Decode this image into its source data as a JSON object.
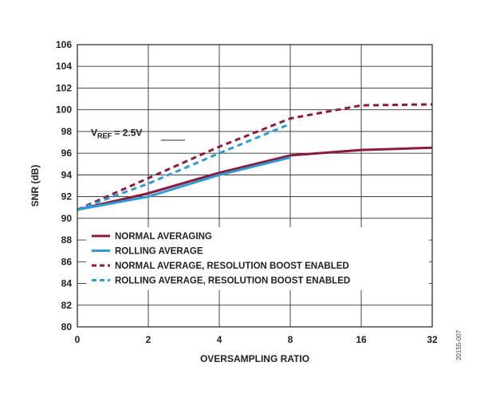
{
  "chart_data": {
    "type": "line",
    "xlabel": "OVERSAMPLING RATIO",
    "ylabel": "SNR (dB)",
    "x_categories": [
      "0",
      "2",
      "4",
      "8",
      "16",
      "32"
    ],
    "yticks": [
      "80",
      "82",
      "84",
      "86",
      "88",
      "90",
      "92",
      "94",
      "96",
      "98",
      "100",
      "102",
      "104",
      "106"
    ],
    "ylim": [
      80,
      106
    ],
    "grid": true,
    "legend_position": "bottom-left",
    "annotation": {
      "main": "V",
      "sub": "REF",
      "rest": " = 2.5V"
    },
    "figure_id": "20155-007",
    "series": [
      {
        "name": "NORMAL AVERAGING",
        "color": "#8b1a3c",
        "style": "solid",
        "points": [
          [
            0,
            90.8
          ],
          [
            1,
            92.3
          ],
          [
            2,
            94.2
          ],
          [
            3,
            95.8
          ],
          [
            4,
            96.3
          ],
          [
            5,
            96.5
          ]
        ]
      },
      {
        "name": "ROLLING AVERAGE",
        "color": "#2e9ad6",
        "style": "solid",
        "points": [
          [
            0,
            90.8
          ],
          [
            1,
            92.0
          ],
          [
            2,
            94.0
          ],
          [
            3,
            95.6
          ]
        ]
      },
      {
        "name": "NORMAL AVERAGE, RESOLUTION BOOST ENABLED",
        "color": "#8b1a3c",
        "style": "dashed",
        "points": [
          [
            0,
            90.8
          ],
          [
            1,
            93.7
          ],
          [
            2,
            96.6
          ],
          [
            3,
            99.2
          ],
          [
            4,
            100.4
          ],
          [
            5,
            100.5
          ]
        ]
      },
      {
        "name": "ROLLING AVERAGE, RESOLUTION BOOST ENABLED",
        "color": "#2e9ad6",
        "style": "dashed",
        "points": [
          [
            0,
            90.8
          ],
          [
            1,
            93.2
          ],
          [
            2,
            96.0
          ],
          [
            3,
            98.7
          ]
        ]
      }
    ]
  }
}
